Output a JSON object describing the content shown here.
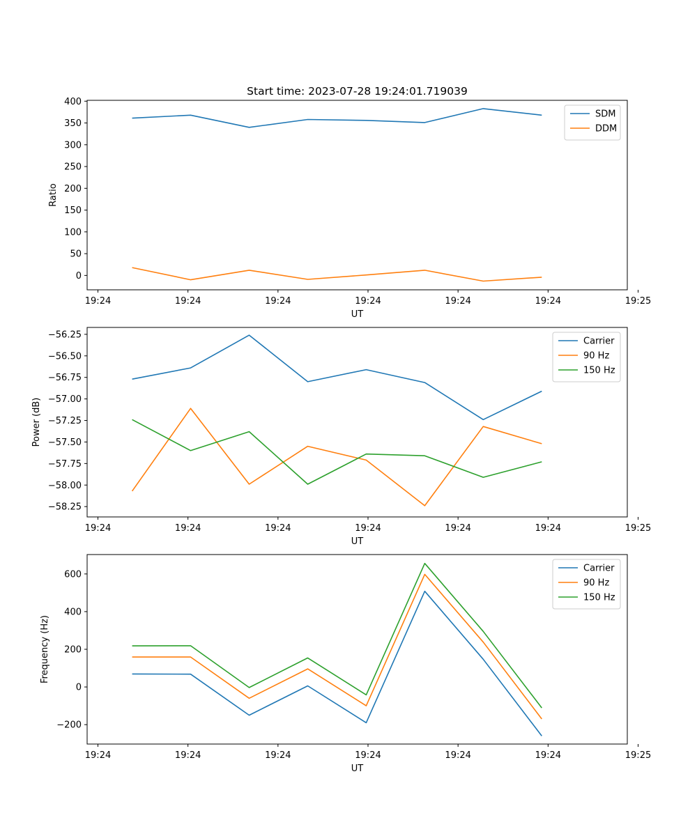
{
  "chart_data": [
    {
      "type": "line",
      "title": "Start time: 2023-07-28 19:24:01.719039",
      "xlabel": "UT",
      "ylabel": "Ratio",
      "x": [
        0.5,
        1.15,
        1.8,
        2.45,
        3.1,
        3.75,
        4.4,
        5.05
      ],
      "xlim": [
        0,
        6
      ],
      "xticks": [
        0.12,
        1.12,
        2.12,
        3.12,
        4.12,
        5.12,
        6.12
      ],
      "xticklabels": [
        "19:24",
        "19:24",
        "19:24",
        "19:24",
        "19:24",
        "19:24",
        "19:25"
      ],
      "ylim": [
        -33,
        402
      ],
      "yticks": [
        0,
        50,
        100,
        150,
        200,
        250,
        300,
        350,
        400
      ],
      "legend_position": "top-right",
      "series": [
        {
          "name": "SDM",
          "color": "#1f77b4",
          "values": [
            361,
            368,
            340,
            358,
            356,
            351,
            383,
            368
          ]
        },
        {
          "name": "DDM",
          "color": "#ff7f0e",
          "values": [
            18,
            -10,
            12,
            -9,
            1,
            12,
            -13,
            -4
          ]
        }
      ]
    },
    {
      "type": "line",
      "title": "",
      "xlabel": "UT",
      "ylabel": "Power (dB)",
      "x": [
        0.5,
        1.15,
        1.8,
        2.45,
        3.1,
        3.75,
        4.4,
        5.05
      ],
      "xlim": [
        0,
        6
      ],
      "xticks": [
        0.12,
        1.12,
        2.12,
        3.12,
        4.12,
        5.12,
        6.12
      ],
      "xticklabels": [
        "19:24",
        "19:24",
        "19:24",
        "19:24",
        "19:24",
        "19:24",
        "19:25"
      ],
      "ylim": [
        -58.37,
        -56.17
      ],
      "yticks": [
        -58.25,
        -58.0,
        -57.75,
        -57.5,
        -57.25,
        -57.0,
        -56.75,
        -56.5,
        -56.25
      ],
      "yticklabels": [
        "−58.25",
        "−58.00",
        "−57.75",
        "−57.50",
        "−57.25",
        "−57.00",
        "−56.75",
        "−56.50",
        "−56.25"
      ],
      "legend_position": "top-right",
      "series": [
        {
          "name": "Carrier",
          "color": "#1f77b4",
          "values": [
            -56.77,
            -56.64,
            -56.26,
            -56.8,
            -56.66,
            -56.81,
            -57.24,
            -56.91
          ]
        },
        {
          "name": "90 Hz",
          "color": "#ff7f0e",
          "values": [
            -58.07,
            -57.11,
            -57.99,
            -57.55,
            -57.71,
            -58.24,
            -57.32,
            -57.52
          ]
        },
        {
          "name": "150 Hz",
          "color": "#2ca02c",
          "values": [
            -57.24,
            -57.6,
            -57.38,
            -57.99,
            -57.64,
            -57.66,
            -57.91,
            -57.73
          ]
        }
      ]
    },
    {
      "type": "line",
      "title": "",
      "xlabel": "UT",
      "ylabel": "Frequency (Hz)",
      "x": [
        0.5,
        1.15,
        1.8,
        2.45,
        3.1,
        3.75,
        4.4,
        5.05
      ],
      "xlim": [
        0,
        6
      ],
      "xticks": [
        0.12,
        1.12,
        2.12,
        3.12,
        4.12,
        5.12,
        6.12
      ],
      "xticklabels": [
        "19:24",
        "19:24",
        "19:24",
        "19:24",
        "19:24",
        "19:24",
        "19:25"
      ],
      "ylim": [
        -303,
        703
      ],
      "yticks": [
        -200,
        0,
        200,
        400,
        600
      ],
      "yticklabels": [
        "−200",
        "0",
        "200",
        "400",
        "600"
      ],
      "legend_position": "top-right",
      "series": [
        {
          "name": "Carrier",
          "color": "#1f77b4",
          "values": [
            69,
            68,
            -150,
            6,
            -190,
            508,
            147,
            -260
          ]
        },
        {
          "name": "90 Hz",
          "color": "#ff7f0e",
          "values": [
            159,
            159,
            -60,
            96,
            -100,
            598,
            238,
            -170
          ]
        },
        {
          "name": "150 Hz",
          "color": "#2ca02c",
          "values": [
            218,
            219,
            -3,
            154,
            -42,
            656,
            295,
            -111
          ]
        }
      ]
    }
  ]
}
